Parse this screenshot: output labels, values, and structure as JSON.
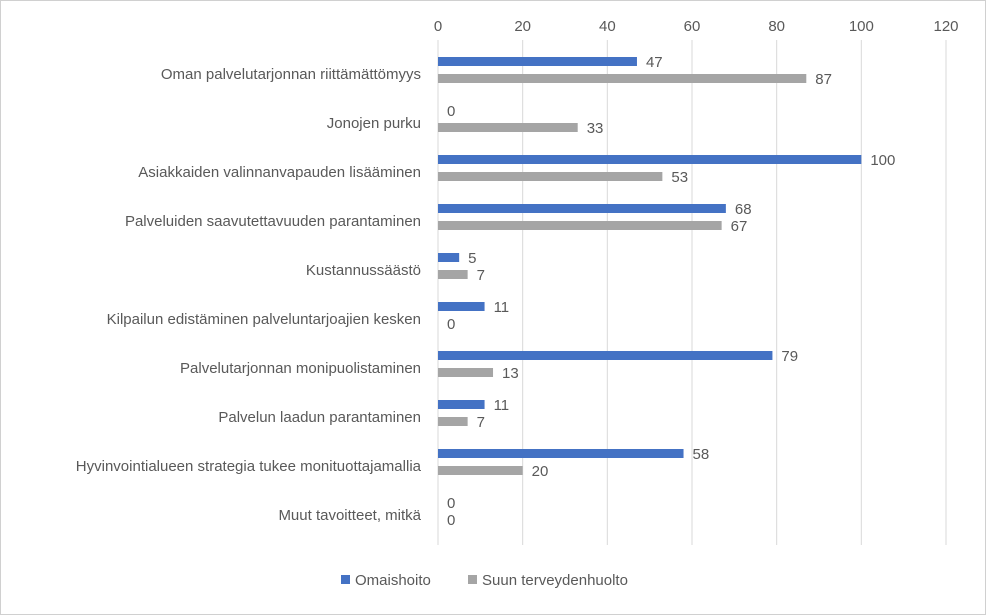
{
  "chart_data": {
    "type": "bar",
    "orientation": "horizontal",
    "categories": [
      "Oman palvelutarjonnan riittämättömyys",
      "Jonojen purku",
      "Asiakkaiden valinnanvapauden lisääminen",
      "Palveluiden saavutettavuuden parantaminen",
      "Kustannussäästö",
      "Kilpailun edistäminen palveluntarjoajien kesken",
      "Palvelutarjonnan monipuolistaminen",
      "Palvelun laadun parantaminen",
      "Hyvinvointialueen strategia tukee monituottajamallia",
      "Muut tavoitteet, mitkä"
    ],
    "series": [
      {
        "name": "Omaishoito",
        "color": "#4472C4",
        "values": [
          47,
          0,
          100,
          68,
          5,
          11,
          79,
          11,
          58,
          0
        ]
      },
      {
        "name": "Suun terveydenhuolto",
        "color": "#A5A5A5",
        "values": [
          87,
          33,
          53,
          67,
          7,
          0,
          13,
          7,
          20,
          0
        ]
      }
    ],
    "xlim": [
      0,
      120
    ],
    "xticks": [
      "0",
      "20",
      "40",
      "60",
      "80",
      "100",
      "120"
    ],
    "axis_position": "top",
    "grid": true,
    "legend": "bottom",
    "data_labels": true
  }
}
